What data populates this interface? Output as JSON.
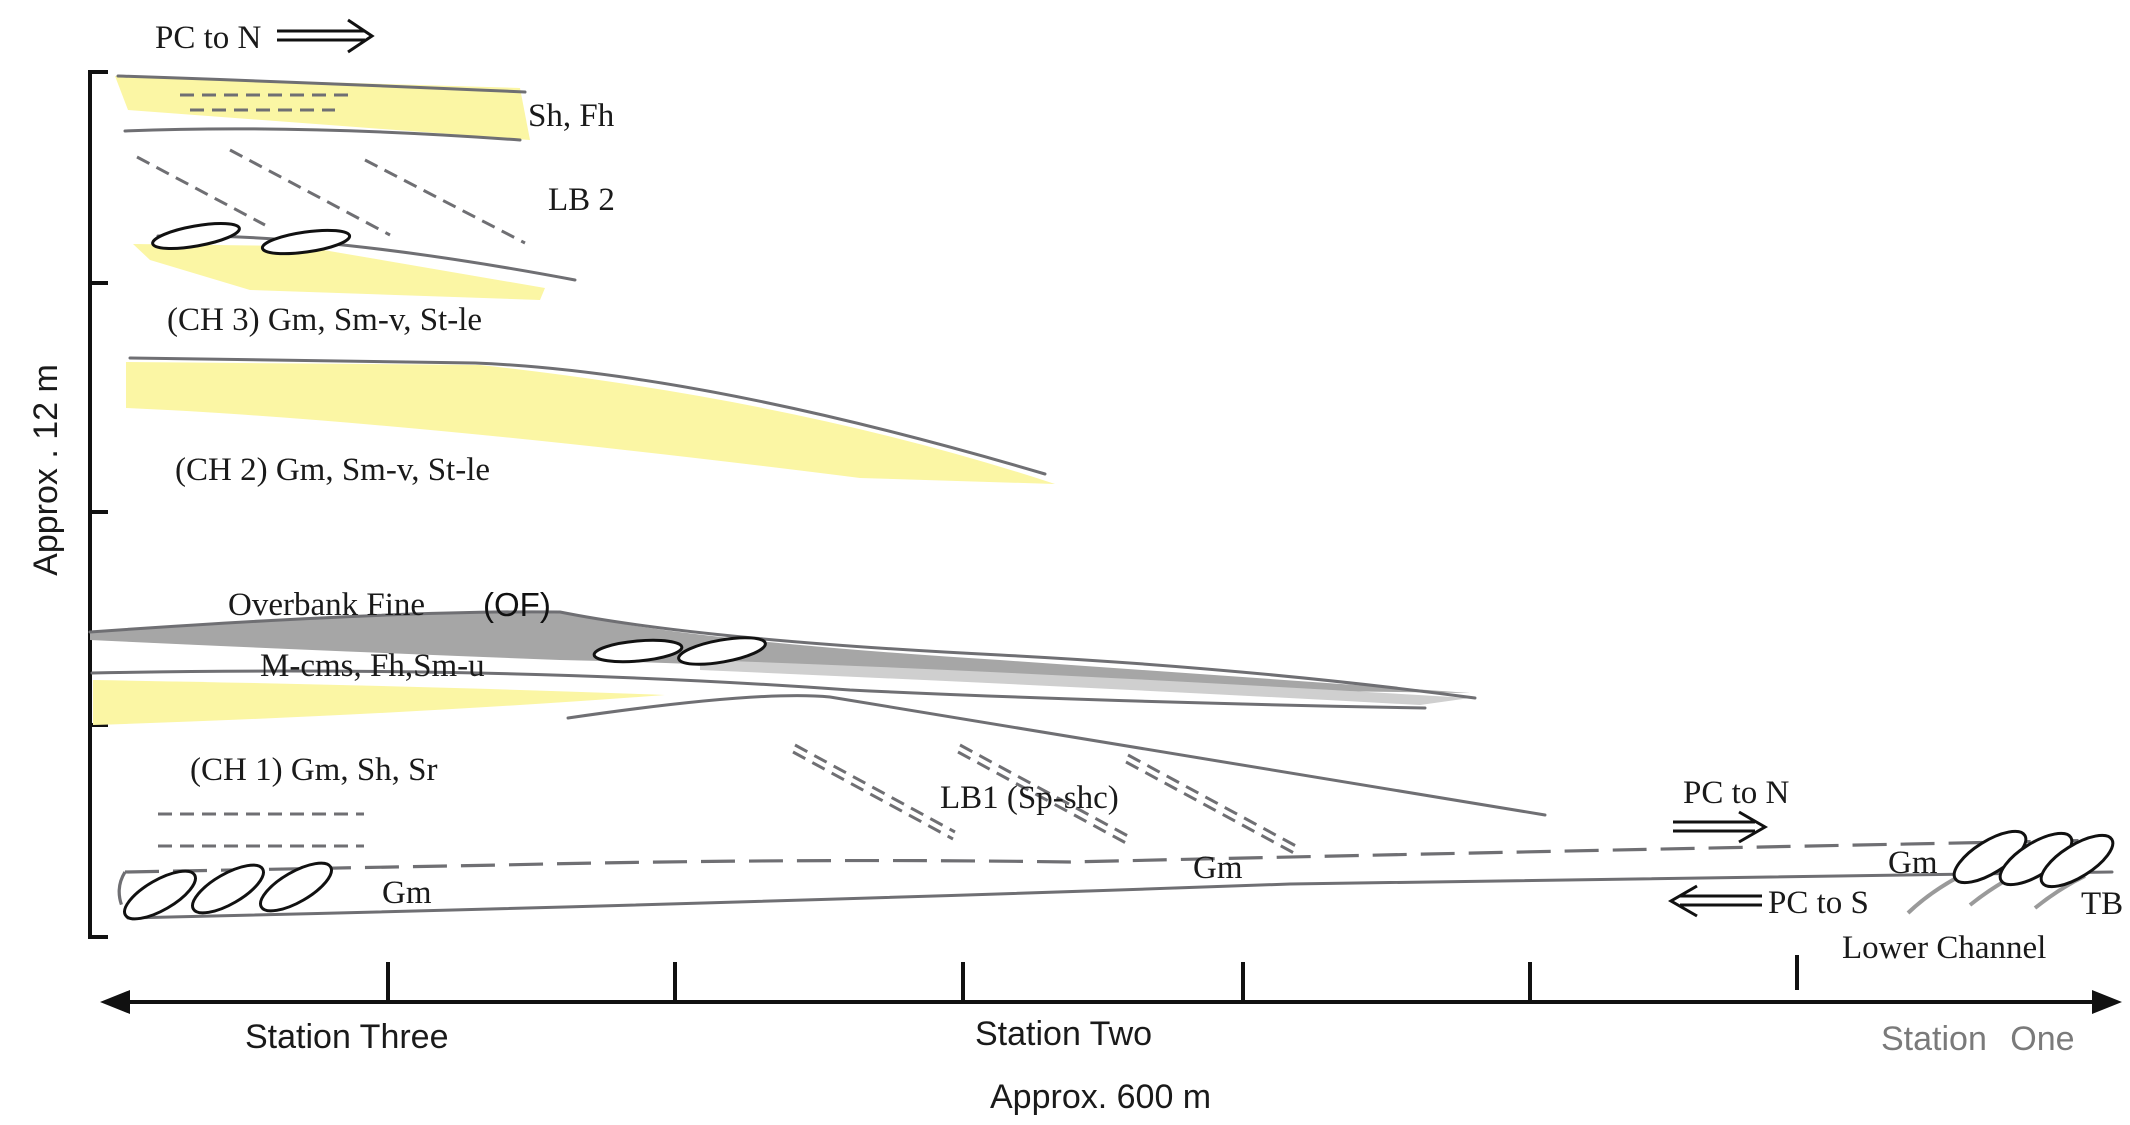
{
  "labels": {
    "pc_to_n_top": "PC to N",
    "sh_fh": "Sh, Fh",
    "lb2": "LB 2",
    "ch3": "(CH 3) Gm, Sm-v, St-le",
    "ch2": "(CH 2) Gm, Sm-v, St-le",
    "overbank_prefix": "Overbank Fine",
    "overbank_abbr": "(OF)",
    "m_cms": "M-cms, Fh,Sm-u",
    "ch1": "(CH 1)  Gm, Sh, Sr",
    "lb1": "LB1 (Sp-shc)",
    "gm_left": "Gm",
    "gm_mid": "Gm",
    "gm_right": "Gm",
    "pc_to_n_right": "PC to N",
    "pc_to_s": "PC to S",
    "tb": "TB",
    "lower_channel": "Lower Channel"
  },
  "axes": {
    "y_label": "Approx . 12 m",
    "x_label": "Approx. 600 m",
    "stations": {
      "three": "Station Three",
      "two": "Station Two",
      "one": "Station One"
    }
  },
  "colors": {
    "sand": "#fbf6a4",
    "fines": "#a6a6a6",
    "boundary": "#6f6f73"
  }
}
